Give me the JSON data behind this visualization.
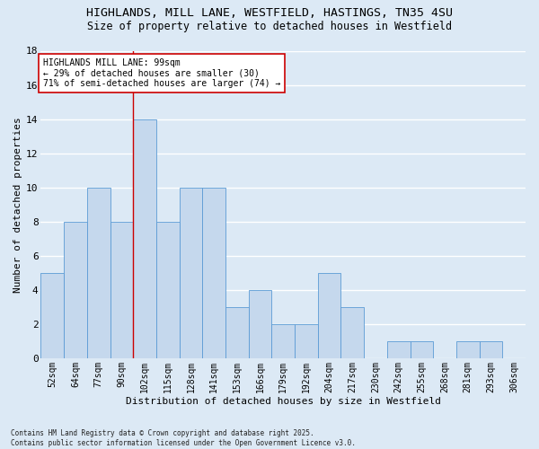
{
  "title": "HIGHLANDS, MILL LANE, WESTFIELD, HASTINGS, TN35 4SU",
  "subtitle": "Size of property relative to detached houses in Westfield",
  "xlabel": "Distribution of detached houses by size in Westfield",
  "ylabel": "Number of detached properties",
  "footer": "Contains HM Land Registry data © Crown copyright and database right 2025.\nContains public sector information licensed under the Open Government Licence v3.0.",
  "categories": [
    "52sqm",
    "64sqm",
    "77sqm",
    "90sqm",
    "102sqm",
    "115sqm",
    "128sqm",
    "141sqm",
    "153sqm",
    "166sqm",
    "179sqm",
    "192sqm",
    "204sqm",
    "217sqm",
    "230sqm",
    "242sqm",
    "255sqm",
    "268sqm",
    "281sqm",
    "293sqm",
    "306sqm"
  ],
  "values": [
    5,
    8,
    10,
    8,
    14,
    8,
    10,
    10,
    3,
    4,
    2,
    2,
    5,
    3,
    0,
    1,
    1,
    0,
    1,
    1,
    0
  ],
  "bar_color": "#c5d8ed",
  "bar_edge_color": "#5b9bd5",
  "annotation_line1": "HIGHLANDS MILL LANE: 99sqm",
  "annotation_line2": "← 29% of detached houses are smaller (30)",
  "annotation_line3": "71% of semi-detached houses are larger (74) →",
  "vline_x": 3.5,
  "ylim": [
    0,
    18
  ],
  "yticks": [
    0,
    2,
    4,
    6,
    8,
    10,
    12,
    14,
    16,
    18
  ],
  "bg_color": "#dce9f5",
  "plot_bg_color": "#dce9f5",
  "grid_color": "#ffffff",
  "annotation_box_color": "#ffffff",
  "annotation_box_edge": "#cc0000",
  "vline_color": "#cc0000",
  "title_fontsize": 9.5,
  "subtitle_fontsize": 8.5,
  "axis_label_fontsize": 8,
  "tick_fontsize": 7,
  "annotation_fontsize": 7
}
